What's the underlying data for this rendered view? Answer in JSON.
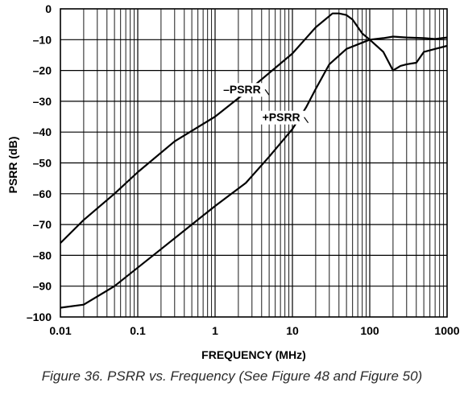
{
  "caption": "Figure 36. PSRR vs. Frequency (See Figure 48 and Figure 50)",
  "chart_data": {
    "type": "line",
    "title": "",
    "xlabel": "FREQUENCY (MHz)",
    "ylabel": "PSRR (dB)",
    "x_scale": "log",
    "xlim": [
      0.01,
      1000
    ],
    "ylim": [
      -100,
      0
    ],
    "grid": true,
    "x_tick_labels": [
      "0.01",
      "0.1",
      "1",
      "10",
      "100",
      "1000"
    ],
    "y_tick_labels": [
      "0",
      "–10",
      "–20",
      "–30",
      "–40",
      "–50",
      "–60",
      "–70",
      "–80",
      "–90",
      "–100"
    ],
    "series": [
      {
        "name": "–PSRR",
        "x": [
          0.01,
          0.02,
          0.05,
          0.1,
          0.3,
          1,
          3,
          10,
          20,
          33,
          40,
          50,
          60,
          80,
          100,
          150,
          200,
          300,
          500,
          700,
          1000
        ],
        "y": [
          -76,
          -68.5,
          -60,
          -53,
          -43,
          -35,
          -25.5,
          -14.5,
          -6,
          -1.5,
          -1.5,
          -2,
          -3.5,
          -8,
          -10,
          -9.5,
          -9,
          -9.3,
          -9.5,
          -9.8,
          -9.3
        ]
      },
      {
        "name": "+PSRR",
        "x": [
          0.01,
          0.02,
          0.05,
          0.1,
          0.2,
          0.5,
          1,
          2.5,
          5,
          10,
          15,
          20,
          30,
          50,
          100,
          150,
          200,
          250,
          300,
          400,
          500,
          700,
          1000
        ],
        "y": [
          -97,
          -96,
          -90,
          -84,
          -78,
          -70,
          -64,
          -56.5,
          -48,
          -39,
          -32,
          -26,
          -18,
          -13,
          -10,
          -14,
          -20,
          -18.5,
          -18,
          -17.5,
          -14,
          -13,
          -12
        ]
      }
    ],
    "annotations": [
      {
        "text": "–PSRR",
        "series": 0,
        "leader_x": 5,
        "leader_y": -28
      },
      {
        "text": "+PSRR",
        "series": 1,
        "leader_x": 16,
        "leader_y": -37
      }
    ]
  }
}
